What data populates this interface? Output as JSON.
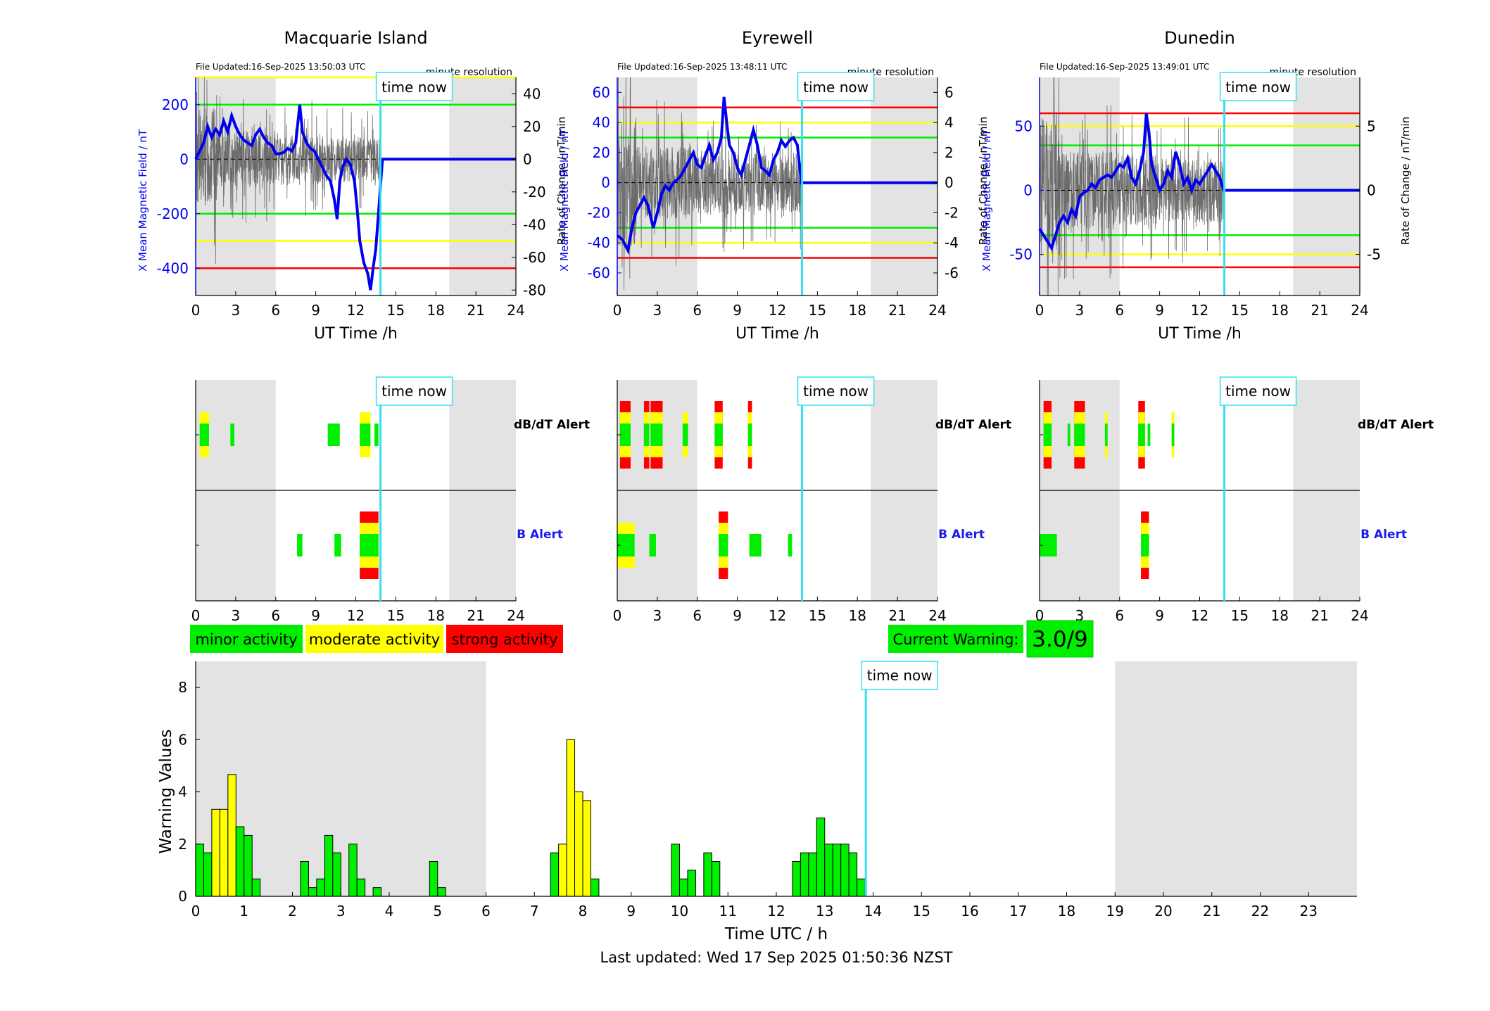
{
  "colors": {
    "x_field": "#0000ee",
    "rate": "#555555",
    "now_line": "#33e0f0",
    "minor": "#00ee00",
    "moderate": "#ffff00",
    "strong": "#ff0000",
    "night_shade": "#e3e3e3",
    "label_blue": "#1a1aee"
  },
  "time_now_label": "time now",
  "time_now_hours": 13.85,
  "night_hours": {
    "morning_end": 6,
    "evening_start": 19
  },
  "stations": [
    {
      "name": "Macquarie Island",
      "file_updated": "File Updated:16-Sep-2025 13:50:03 UTC",
      "resolution": "minute resolution",
      "left_ylabel": "X Mean Magnetic Field / nT",
      "right_ylabel": "Rate of Change / nT/min",
      "xlabel": "UT Time /h",
      "b_ylim": [
        -500,
        300
      ],
      "b_ticks": [
        200,
        0,
        -200,
        -400
      ],
      "r_ylim": [
        -83.33,
        50
      ],
      "r_ticks": [
        40,
        20,
        0,
        -20,
        -40,
        -60,
        -80
      ],
      "thresholds": [
        {
          "value": 300,
          "level": "moderate"
        },
        {
          "value": 200,
          "level": "minor"
        },
        {
          "value": -200,
          "level": "minor"
        },
        {
          "value": -300,
          "level": "moderate"
        },
        {
          "value": -400,
          "level": "strong"
        }
      ],
      "b_series": [
        [
          0,
          0
        ],
        [
          0.3,
          30
        ],
        [
          0.6,
          60
        ],
        [
          0.9,
          120
        ],
        [
          1.2,
          80
        ],
        [
          1.5,
          110
        ],
        [
          1.8,
          90
        ],
        [
          2.1,
          140
        ],
        [
          2.4,
          100
        ],
        [
          2.7,
          160
        ],
        [
          3.0,
          120
        ],
        [
          3.3,
          90
        ],
        [
          3.6,
          70
        ],
        [
          3.9,
          60
        ],
        [
          4.2,
          50
        ],
        [
          4.5,
          90
        ],
        [
          4.8,
          110
        ],
        [
          5.1,
          80
        ],
        [
          5.4,
          60
        ],
        [
          5.7,
          50
        ],
        [
          6.0,
          20
        ],
        [
          6.3,
          20
        ],
        [
          6.6,
          25
        ],
        [
          6.9,
          40
        ],
        [
          7.2,
          30
        ],
        [
          7.5,
          60
        ],
        [
          7.8,
          200
        ],
        [
          8.0,
          100
        ],
        [
          8.3,
          60
        ],
        [
          8.6,
          40
        ],
        [
          8.9,
          30
        ],
        [
          9.2,
          0
        ],
        [
          9.5,
          -30
        ],
        [
          9.8,
          -60
        ],
        [
          10.1,
          -80
        ],
        [
          10.4,
          -150
        ],
        [
          10.6,
          -220
        ],
        [
          10.8,
          -80
        ],
        [
          11.0,
          -30
        ],
        [
          11.3,
          0
        ],
        [
          11.6,
          -20
        ],
        [
          11.9,
          -80
        ],
        [
          12.1,
          -180
        ],
        [
          12.3,
          -300
        ],
        [
          12.6,
          -380
        ],
        [
          12.9,
          -420
        ],
        [
          13.1,
          -480
        ],
        [
          13.3,
          -400
        ],
        [
          13.5,
          -330
        ],
        [
          13.7,
          -200
        ],
        [
          13.85,
          -100
        ],
        [
          14.0,
          0
        ],
        [
          24,
          0
        ]
      ],
      "dbdt_alert": [
        {
          "start": 0.3,
          "end": 1.0,
          "level": "moderate"
        },
        {
          "start": 2.6,
          "end": 2.9,
          "level": "minor"
        },
        {
          "start": 9.9,
          "end": 10.8,
          "level": "minor"
        },
        {
          "start": 12.3,
          "end": 13.1,
          "level": "moderate"
        },
        {
          "start": 13.4,
          "end": 13.7,
          "level": "minor"
        }
      ],
      "b_alert": [
        {
          "start": 7.6,
          "end": 8.0,
          "level": "minor"
        },
        {
          "start": 10.4,
          "end": 10.9,
          "level": "minor"
        },
        {
          "start": 12.3,
          "end": 13.7,
          "level": "strong"
        }
      ]
    },
    {
      "name": "Eyrewell",
      "file_updated": "File Updated:16-Sep-2025 13:48:11 UTC",
      "resolution": "minute resolution",
      "left_ylabel": "X Mean Magnetic Field / nT",
      "right_ylabel": "Rate of Change / nT/min",
      "xlabel": "UT Time /h",
      "b_ylim": [
        -75,
        70
      ],
      "b_ticks": [
        60,
        40,
        20,
        0,
        -20,
        -40,
        -60
      ],
      "r_ylim": [
        -7.5,
        7
      ],
      "r_ticks": [
        6,
        4,
        2,
        0,
        -2,
        -4,
        -6
      ],
      "thresholds": [
        {
          "value": 50,
          "level": "strong"
        },
        {
          "value": 40,
          "level": "moderate"
        },
        {
          "value": 30,
          "level": "minor"
        },
        {
          "value": -30,
          "level": "minor"
        },
        {
          "value": -40,
          "level": "moderate"
        },
        {
          "value": -50,
          "level": "strong"
        }
      ],
      "b_series": [
        [
          0,
          -35
        ],
        [
          0.4,
          -38
        ],
        [
          0.8,
          -45
        ],
        [
          1.1,
          -30
        ],
        [
          1.4,
          -20
        ],
        [
          1.7,
          -15
        ],
        [
          2.0,
          -10
        ],
        [
          2.3,
          -15
        ],
        [
          2.7,
          -30
        ],
        [
          3.0,
          -20
        ],
        [
          3.3,
          -8
        ],
        [
          3.6,
          -2
        ],
        [
          3.9,
          -5
        ],
        [
          4.2,
          0
        ],
        [
          4.5,
          2
        ],
        [
          4.8,
          5
        ],
        [
          5.1,
          10
        ],
        [
          5.4,
          15
        ],
        [
          5.7,
          20
        ],
        [
          6.0,
          12
        ],
        [
          6.3,
          10
        ],
        [
          6.6,
          18
        ],
        [
          6.9,
          25
        ],
        [
          7.2,
          15
        ],
        [
          7.5,
          20
        ],
        [
          7.8,
          30
        ],
        [
          8.0,
          57
        ],
        [
          8.2,
          40
        ],
        [
          8.4,
          25
        ],
        [
          8.7,
          20
        ],
        [
          9.0,
          10
        ],
        [
          9.3,
          5
        ],
        [
          9.6,
          15
        ],
        [
          9.9,
          25
        ],
        [
          10.2,
          35
        ],
        [
          10.5,
          25
        ],
        [
          10.8,
          10
        ],
        [
          11.1,
          8
        ],
        [
          11.4,
          5
        ],
        [
          11.7,
          15
        ],
        [
          12.0,
          20
        ],
        [
          12.3,
          28
        ],
        [
          12.6,
          24
        ],
        [
          12.9,
          28
        ],
        [
          13.2,
          30
        ],
        [
          13.5,
          25
        ],
        [
          13.8,
          0
        ],
        [
          24,
          0
        ]
      ],
      "dbdt_alert": [
        {
          "start": 0.2,
          "end": 1.0,
          "level": "strong"
        },
        {
          "start": 2.0,
          "end": 2.4,
          "level": "strong"
        },
        {
          "start": 2.5,
          "end": 3.4,
          "level": "strong"
        },
        {
          "start": 4.9,
          "end": 5.3,
          "level": "moderate"
        },
        {
          "start": 7.3,
          "end": 7.9,
          "level": "strong"
        },
        {
          "start": 9.8,
          "end": 10.1,
          "level": "strong"
        }
      ],
      "b_alert": [
        {
          "start": 0.0,
          "end": 1.3,
          "level": "moderate"
        },
        {
          "start": 2.4,
          "end": 2.9,
          "level": "minor"
        },
        {
          "start": 7.6,
          "end": 8.3,
          "level": "strong"
        },
        {
          "start": 9.9,
          "end": 10.8,
          "level": "minor"
        },
        {
          "start": 12.8,
          "end": 13.1,
          "level": "minor"
        }
      ]
    },
    {
      "name": "Dunedin",
      "file_updated": "File Updated:16-Sep-2025 13:49:01 UTC",
      "resolution": "minute resolution",
      "left_ylabel": "X Mean Magnetic Field / nT",
      "right_ylabel": "Rate of Change / nT/min",
      "xlabel": "UT Time /h",
      "b_ylim": [
        -82,
        88
      ],
      "b_ticks": [
        50,
        0,
        -50
      ],
      "r_ylim": [
        -8.2,
        8.8
      ],
      "r_ticks": [
        5,
        0,
        -5
      ],
      "thresholds": [
        {
          "value": 60,
          "level": "strong"
        },
        {
          "value": 50,
          "level": "moderate"
        },
        {
          "value": 35,
          "level": "minor"
        },
        {
          "value": -35,
          "level": "minor"
        },
        {
          "value": -50,
          "level": "moderate"
        },
        {
          "value": -60,
          "level": "strong"
        }
      ],
      "b_series": [
        [
          0,
          -30
        ],
        [
          0.3,
          -35
        ],
        [
          0.6,
          -40
        ],
        [
          0.9,
          -45
        ],
        [
          1.2,
          -35
        ],
        [
          1.5,
          -25
        ],
        [
          1.8,
          -20
        ],
        [
          2.1,
          -25
        ],
        [
          2.4,
          -15
        ],
        [
          2.7,
          -20
        ],
        [
          3.0,
          -5
        ],
        [
          3.3,
          -2
        ],
        [
          3.6,
          0
        ],
        [
          3.9,
          5
        ],
        [
          4.2,
          2
        ],
        [
          4.5,
          8
        ],
        [
          4.8,
          10
        ],
        [
          5.1,
          12
        ],
        [
          5.4,
          10
        ],
        [
          5.7,
          15
        ],
        [
          6.0,
          20
        ],
        [
          6.3,
          18
        ],
        [
          6.6,
          25
        ],
        [
          6.9,
          10
        ],
        [
          7.2,
          5
        ],
        [
          7.5,
          15
        ],
        [
          7.8,
          30
        ],
        [
          8.0,
          60
        ],
        [
          8.2,
          45
        ],
        [
          8.4,
          20
        ],
        [
          8.7,
          10
        ],
        [
          9.0,
          0
        ],
        [
          9.3,
          5
        ],
        [
          9.6,
          15
        ],
        [
          9.9,
          10
        ],
        [
          10.2,
          30
        ],
        [
          10.5,
          20
        ],
        [
          10.8,
          5
        ],
        [
          11.1,
          10
        ],
        [
          11.4,
          0
        ],
        [
          11.7,
          8
        ],
        [
          12.0,
          5
        ],
        [
          12.3,
          10
        ],
        [
          12.6,
          15
        ],
        [
          12.9,
          20
        ],
        [
          13.2,
          15
        ],
        [
          13.5,
          10
        ],
        [
          13.8,
          0
        ],
        [
          24,
          0
        ]
      ],
      "dbdt_alert": [
        {
          "start": 0.3,
          "end": 0.9,
          "level": "strong"
        },
        {
          "start": 2.1,
          "end": 2.3,
          "level": "minor"
        },
        {
          "start": 2.6,
          "end": 3.4,
          "level": "strong"
        },
        {
          "start": 4.9,
          "end": 5.1,
          "level": "moderate"
        },
        {
          "start": 7.4,
          "end": 7.9,
          "level": "strong"
        },
        {
          "start": 8.1,
          "end": 8.3,
          "level": "minor"
        },
        {
          "start": 9.9,
          "end": 10.1,
          "level": "moderate"
        }
      ],
      "b_alert": [
        {
          "start": 0.0,
          "end": 1.3,
          "level": "minor"
        },
        {
          "start": 7.6,
          "end": 8.2,
          "level": "strong"
        }
      ]
    }
  ],
  "alert_labels": {
    "dbdt": "dB/dT Alert",
    "b": "B Alert"
  },
  "legend": [
    {
      "label": "minor activity",
      "level": "minor"
    },
    {
      "label": "moderate activity",
      "level": "moderate"
    },
    {
      "label": "strong activity",
      "level": "strong"
    }
  ],
  "current_warning": {
    "label": "Current Warning:",
    "value": "3.0/9"
  },
  "chart_data": {
    "type": "bar",
    "xlabel": "Time UTC / h",
    "ylabel": "Warning Values",
    "xlim": [
      0,
      24
    ],
    "ylim": [
      0,
      9
    ],
    "yticks": [
      0,
      2,
      4,
      6,
      8
    ],
    "xticks": [
      0,
      1,
      2,
      3,
      4,
      5,
      6,
      7,
      8,
      9,
      10,
      11,
      12,
      13,
      14,
      15,
      16,
      17,
      18,
      19,
      20,
      21,
      22,
      23
    ],
    "bar_width_hours": 0.1667,
    "bars": [
      {
        "t": 0.0,
        "value": 2.0,
        "level": "minor"
      },
      {
        "t": 0.1667,
        "value": 1.667,
        "level": "minor"
      },
      {
        "t": 0.3333,
        "value": 3.333,
        "level": "moderate"
      },
      {
        "t": 0.5,
        "value": 3.333,
        "level": "moderate"
      },
      {
        "t": 0.6667,
        "value": 4.667,
        "level": "moderate"
      },
      {
        "t": 0.8333,
        "value": 2.667,
        "level": "minor"
      },
      {
        "t": 1.0,
        "value": 2.333,
        "level": "minor"
      },
      {
        "t": 1.1667,
        "value": 0.667,
        "level": "minor"
      },
      {
        "t": 2.1667,
        "value": 1.333,
        "level": "minor"
      },
      {
        "t": 2.3333,
        "value": 0.333,
        "level": "minor"
      },
      {
        "t": 2.5,
        "value": 0.667,
        "level": "minor"
      },
      {
        "t": 2.6667,
        "value": 2.333,
        "level": "minor"
      },
      {
        "t": 2.8333,
        "value": 1.667,
        "level": "minor"
      },
      {
        "t": 3.1667,
        "value": 2.0,
        "level": "minor"
      },
      {
        "t": 3.3333,
        "value": 0.667,
        "level": "minor"
      },
      {
        "t": 3.6667,
        "value": 0.333,
        "level": "minor"
      },
      {
        "t": 4.8333,
        "value": 1.333,
        "level": "minor"
      },
      {
        "t": 5.0,
        "value": 0.333,
        "level": "minor"
      },
      {
        "t": 7.3333,
        "value": 1.667,
        "level": "minor"
      },
      {
        "t": 7.5,
        "value": 2.0,
        "level": "moderate"
      },
      {
        "t": 7.6667,
        "value": 6.0,
        "level": "moderate"
      },
      {
        "t": 7.8333,
        "value": 4.0,
        "level": "moderate"
      },
      {
        "t": 8.0,
        "value": 3.667,
        "level": "moderate"
      },
      {
        "t": 8.1667,
        "value": 0.667,
        "level": "minor"
      },
      {
        "t": 9.8333,
        "value": 2.0,
        "level": "minor"
      },
      {
        "t": 10.0,
        "value": 0.667,
        "level": "minor"
      },
      {
        "t": 10.1667,
        "value": 1.0,
        "level": "minor"
      },
      {
        "t": 10.5,
        "value": 1.667,
        "level": "minor"
      },
      {
        "t": 10.6667,
        "value": 1.333,
        "level": "minor"
      },
      {
        "t": 12.3333,
        "value": 1.333,
        "level": "minor"
      },
      {
        "t": 12.5,
        "value": 1.667,
        "level": "minor"
      },
      {
        "t": 12.6667,
        "value": 1.667,
        "level": "minor"
      },
      {
        "t": 12.8333,
        "value": 3.0,
        "level": "minor"
      },
      {
        "t": 13.0,
        "value": 2.0,
        "level": "minor"
      },
      {
        "t": 13.1667,
        "value": 2.0,
        "level": "minor"
      },
      {
        "t": 13.3333,
        "value": 2.0,
        "level": "minor"
      },
      {
        "t": 13.5,
        "value": 1.667,
        "level": "minor"
      },
      {
        "t": 13.6667,
        "value": 0.667,
        "level": "minor"
      }
    ]
  },
  "last_updated": "Last updated: Wed 17 Sep 2025 01:50:36 NZST"
}
